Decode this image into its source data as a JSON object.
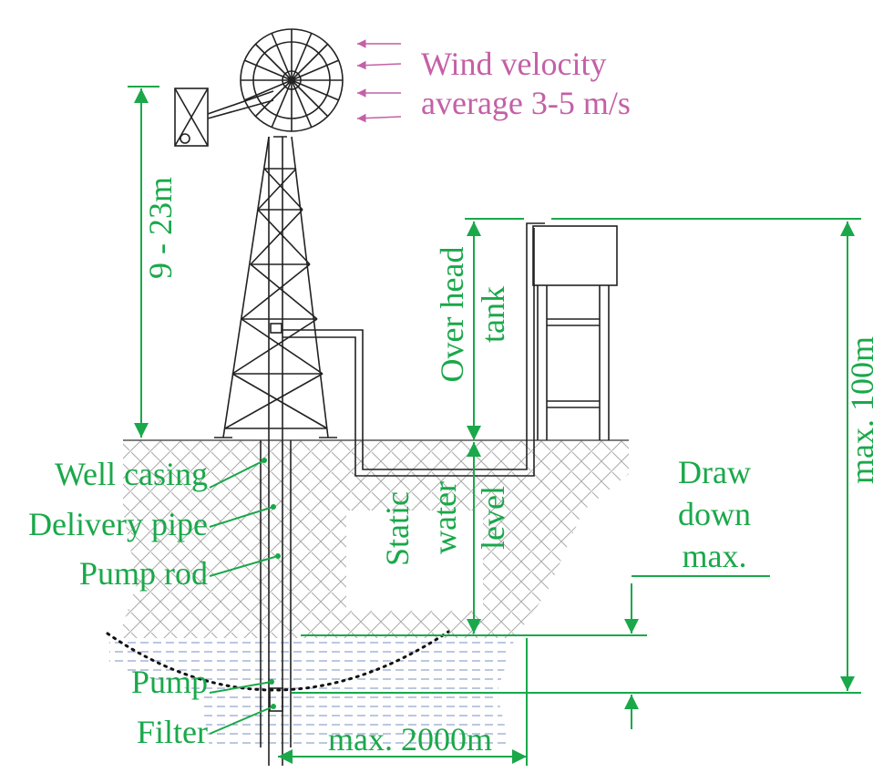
{
  "labels": {
    "wind": [
      "Wind velocity",
      "average 3-5 m/s"
    ],
    "tower_height": "9 - 23m",
    "overhead_tank": [
      "Over head",
      "tank"
    ],
    "max_head": "max. 100m",
    "well_casing": "Well casing",
    "delivery_pipe": "Delivery pipe",
    "pump_rod": "Pump rod",
    "static_water_level": [
      "Static",
      "water",
      "level"
    ],
    "draw_down": [
      "Draw",
      "down",
      "max."
    ],
    "pump": "Pump",
    "filter": "Filter",
    "max_distance": "max. 2000m"
  }
}
